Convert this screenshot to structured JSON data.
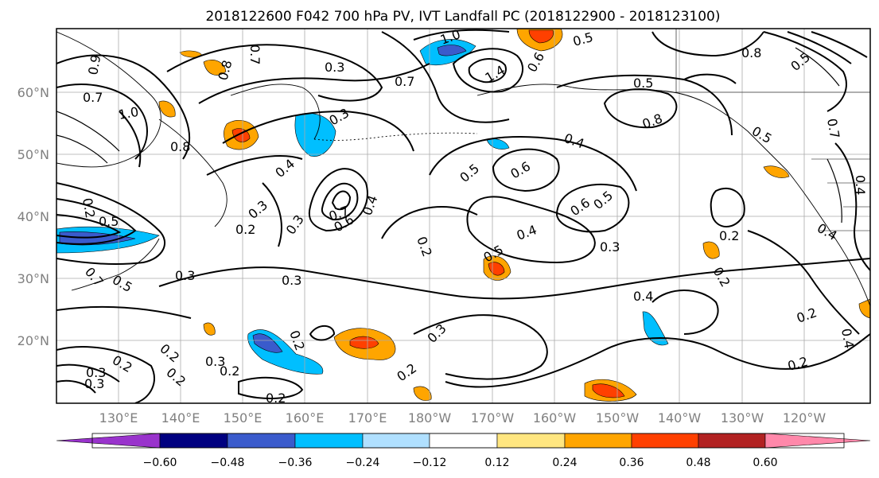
{
  "title": "2018122600 F042 700 hPa PV, IVT Landfall PC (2018122900 - 2018123100)",
  "lat_labels": [
    "60°N",
    "50°N",
    "40°N",
    "30°N",
    "20°N"
  ],
  "lon_labels": [
    "130°E",
    "140°E",
    "150°E",
    "160°E",
    "170°E",
    "180°W",
    "170°W",
    "160°W",
    "150°W",
    "140°W",
    "130°W",
    "120°W"
  ],
  "colorbar": {
    "ticks": [
      "−0.60",
      "−0.48",
      "−0.36",
      "−0.24",
      "−0.12",
      "0.12",
      "0.24",
      "0.36",
      "0.48",
      "0.60"
    ],
    "colors": [
      "#9933cc",
      "#000080",
      "#3a5bcc",
      "#00bfff",
      "#b0e0ff",
      "#ffffff",
      "#ffe680",
      "#ffa500",
      "#ff4000",
      "#b22222",
      "#ff88aa"
    ]
  },
  "contour_labels": [
    "0.9",
    "0.7",
    "0.8",
    "0.7",
    "0.3",
    "1.0",
    "1.4",
    "0.6",
    "0.5",
    "0.5",
    "0.8",
    "1.0",
    "0.8",
    "0.3",
    "0.5",
    "0.8",
    "0.7",
    "0.5",
    "0.7",
    "0.4",
    "0.4",
    "0.5",
    "0.6",
    "0.5",
    "0.6",
    "0.4",
    "0.3",
    "0.5",
    "0.2",
    "0.3",
    "0.3",
    "0.7",
    "0.6",
    "0.4",
    "0.2",
    "0.5",
    "0.4",
    "0.4",
    "0.3",
    "0.2",
    "0.2",
    "0.7",
    "0.5",
    "0.3",
    "0.3",
    "0.4",
    "0.2",
    "0.3",
    "0.2",
    "0.2",
    "0.2",
    "0.3",
    "0.2",
    "0.2",
    "0.3",
    "0.2",
    "0.2",
    "0.2",
    "0.2",
    "0.4"
  ]
}
